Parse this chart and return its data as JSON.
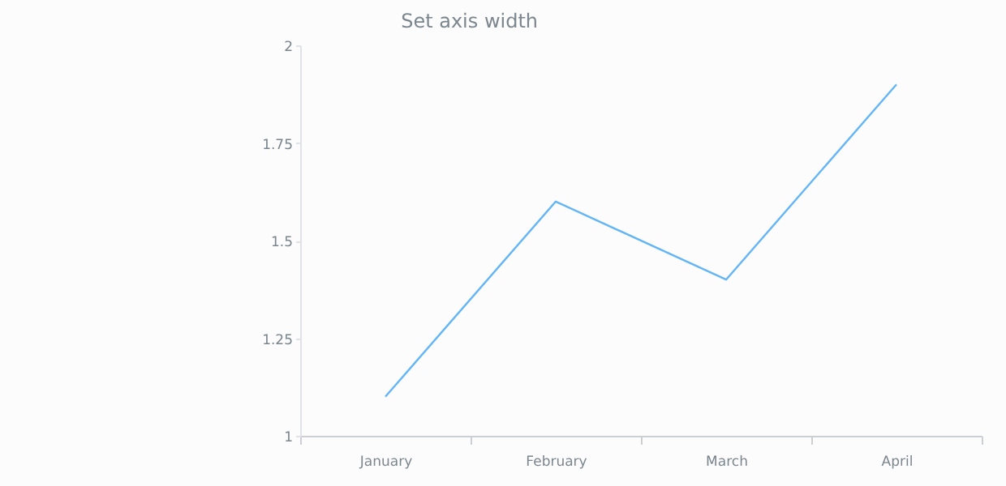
{
  "chart_data": {
    "type": "line",
    "title": "Set axis width",
    "categories": [
      "January",
      "February",
      "March",
      "April"
    ],
    "series": [
      {
        "color": "#64b5f6",
        "values": [
          1.1,
          1.6,
          1.4,
          1.9
        ]
      }
    ],
    "ylim": [
      1,
      2
    ],
    "yticks": [
      1,
      1.25,
      1.5,
      1.75,
      2
    ],
    "grid": false,
    "legend": false,
    "marker": "none",
    "line_style": "solid"
  }
}
